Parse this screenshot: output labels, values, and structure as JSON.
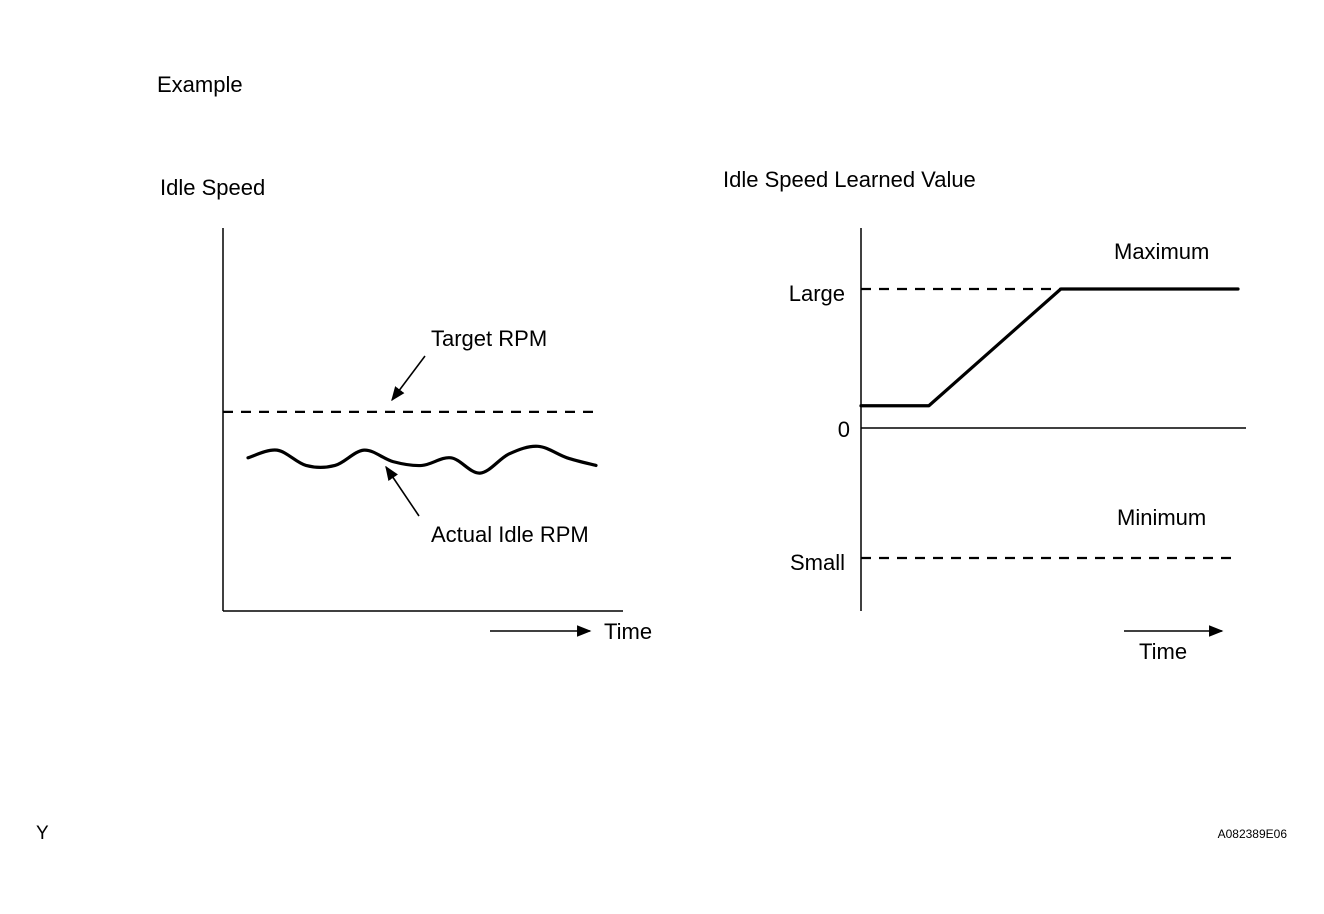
{
  "page": {
    "heading": "Example",
    "corner_left": "Y",
    "figure_id": "A082389E06"
  },
  "chart_data": [
    {
      "type": "line",
      "title": "Idle Speed",
      "xlabel": "Time",
      "series": [
        {
          "name": "Target RPM",
          "style": "dashed",
          "values": [
            0.52,
            0.52
          ]
        },
        {
          "name": "Actual Idle RPM",
          "style": "solid-wavy",
          "values": [
            0.4,
            0.42,
            0.38,
            0.38,
            0.42,
            0.39,
            0.38,
            0.4,
            0.36,
            0.41,
            0.43,
            0.4,
            0.38
          ]
        }
      ],
      "annotations": [
        "Target RPM",
        "Actual Idle RPM"
      ]
    },
    {
      "type": "line",
      "title": "Idle Speed Learned Value",
      "xlabel": "Time",
      "yticks": [
        "Large",
        "0",
        "Small"
      ],
      "y_values": {
        "Large": 1,
        "0": 0,
        "Small": -1
      },
      "limits": {
        "max_label": "Maximum",
        "min_label": "Minimum"
      },
      "series": [
        {
          "style": "solid",
          "x": [
            0,
            0.18,
            0.53,
            1.0
          ],
          "values": [
            0.16,
            0.16,
            1,
            1
          ]
        }
      ]
    }
  ],
  "colors": {
    "ink": "#000000",
    "background": "#ffffff"
  }
}
